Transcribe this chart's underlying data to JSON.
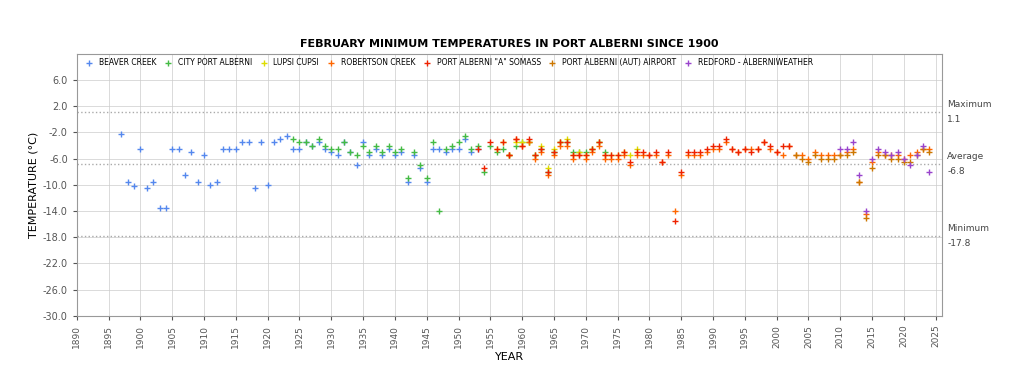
{
  "title": "FEBRUARY MINIMUM TEMPERATURES IN PORT ALBERNI SINCE 1900",
  "xlabel": "YEAR",
  "ylabel": "TEMPERATURE (°C)",
  "ylim": [
    -30.0,
    10.0
  ],
  "xlim": [
    1890,
    2026
  ],
  "yticks": [
    6.0,
    2.0,
    -2.0,
    -6.0,
    -10.0,
    -14.0,
    -18.0,
    -22.0,
    -26.0,
    -30.0
  ],
  "xticks": [
    1890,
    1895,
    1900,
    1905,
    1910,
    1915,
    1920,
    1925,
    1930,
    1935,
    1940,
    1945,
    1950,
    1955,
    1960,
    1965,
    1970,
    1975,
    1980,
    1985,
    1990,
    1995,
    2000,
    2005,
    2010,
    2015,
    2020,
    2025
  ],
  "max_line": 1.1,
  "avg_line": -6.8,
  "min_line": -17.8,
  "background_color": "#ffffff",
  "grid_color": "#cccccc",
  "ref_line_color": "#aaaaaa",
  "ref_label_color": "#444444",
  "series": [
    {
      "name": "BEAVER CREEK",
      "color": "#5588ee",
      "data": [
        [
          1897,
          -2.2
        ],
        [
          1898,
          -9.5
        ],
        [
          1899,
          -10.2
        ],
        [
          1900,
          -4.5
        ],
        [
          1901,
          -10.5
        ],
        [
          1902,
          -9.5
        ],
        [
          1903,
          -13.5
        ],
        [
          1904,
          -13.5
        ],
        [
          1905,
          -4.5
        ],
        [
          1906,
          -4.5
        ],
        [
          1907,
          -8.5
        ],
        [
          1908,
          -5.0
        ],
        [
          1909,
          -9.5
        ],
        [
          1910,
          -5.5
        ],
        [
          1911,
          -10.0
        ],
        [
          1912,
          -9.5
        ],
        [
          1913,
          -4.5
        ],
        [
          1914,
          -4.5
        ],
        [
          1915,
          -4.5
        ],
        [
          1916,
          -3.5
        ],
        [
          1917,
          -3.5
        ],
        [
          1918,
          -10.5
        ],
        [
          1919,
          -3.5
        ],
        [
          1920,
          -10.0
        ],
        [
          1921,
          -3.5
        ],
        [
          1922,
          -3.0
        ],
        [
          1923,
          -2.5
        ],
        [
          1924,
          -4.5
        ],
        [
          1925,
          -4.5
        ],
        [
          1926,
          -3.5
        ],
        [
          1927,
          -4.0
        ],
        [
          1928,
          -3.5
        ],
        [
          1929,
          -4.5
        ],
        [
          1930,
          -5.0
        ],
        [
          1931,
          -5.5
        ],
        [
          1932,
          -3.5
        ],
        [
          1933,
          -5.0
        ],
        [
          1934,
          -7.0
        ],
        [
          1935,
          -3.5
        ],
        [
          1936,
          -5.5
        ],
        [
          1937,
          -4.5
        ],
        [
          1938,
          -5.5
        ],
        [
          1939,
          -4.5
        ],
        [
          1940,
          -5.5
        ],
        [
          1941,
          -5.0
        ],
        [
          1942,
          -9.5
        ],
        [
          1943,
          -5.5
        ],
        [
          1944,
          -7.5
        ],
        [
          1945,
          -9.5
        ],
        [
          1946,
          -4.5
        ],
        [
          1947,
          -4.5
        ],
        [
          1948,
          -5.0
        ],
        [
          1949,
          -4.5
        ],
        [
          1950,
          -4.5
        ],
        [
          1951,
          -3.0
        ],
        [
          1952,
          -5.0
        ],
        [
          1953,
          -4.5
        ]
      ]
    },
    {
      "name": "CITY PORT ALBERNI",
      "color": "#44bb44",
      "data": [
        [
          1924,
          -3.0
        ],
        [
          1925,
          -3.5
        ],
        [
          1926,
          -3.5
        ],
        [
          1927,
          -4.0
        ],
        [
          1928,
          -3.0
        ],
        [
          1929,
          -4.0
        ],
        [
          1930,
          -4.5
        ],
        [
          1931,
          -4.5
        ],
        [
          1932,
          -3.5
        ],
        [
          1933,
          -5.0
        ],
        [
          1934,
          -5.5
        ],
        [
          1935,
          -4.0
        ],
        [
          1936,
          -5.0
        ],
        [
          1937,
          -4.0
        ],
        [
          1938,
          -5.0
        ],
        [
          1939,
          -4.0
        ],
        [
          1940,
          -5.0
        ],
        [
          1941,
          -4.5
        ],
        [
          1942,
          -9.0
        ],
        [
          1943,
          -5.0
        ],
        [
          1944,
          -7.0
        ],
        [
          1945,
          -9.0
        ],
        [
          1946,
          -3.5
        ],
        [
          1947,
          -14.0
        ],
        [
          1948,
          -4.5
        ],
        [
          1949,
          -4.0
        ],
        [
          1950,
          -3.5
        ],
        [
          1951,
          -2.5
        ],
        [
          1952,
          -4.5
        ],
        [
          1953,
          -4.0
        ],
        [
          1954,
          -8.0
        ],
        [
          1955,
          -4.0
        ],
        [
          1956,
          -5.0
        ],
        [
          1957,
          -4.5
        ],
        [
          1958,
          -5.5
        ],
        [
          1959,
          -4.0
        ],
        [
          1960,
          -3.5
        ],
        [
          1961,
          -3.5
        ],
        [
          1962,
          -5.5
        ],
        [
          1963,
          -4.5
        ],
        [
          1964,
          -8.0
        ],
        [
          1965,
          -5.0
        ],
        [
          1966,
          -3.5
        ],
        [
          1967,
          -3.5
        ],
        [
          1968,
          -5.0
        ],
        [
          1969,
          -5.0
        ],
        [
          1970,
          -5.0
        ],
        [
          1971,
          -4.5
        ],
        [
          1972,
          -3.5
        ],
        [
          1973,
          -5.0
        ]
      ]
    },
    {
      "name": "LUPSI CUPSI",
      "color": "#dddd00",
      "data": [
        [
          1956,
          -4.5
        ],
        [
          1957,
          -3.5
        ],
        [
          1958,
          -5.5
        ],
        [
          1959,
          -3.5
        ],
        [
          1960,
          -3.5
        ],
        [
          1961,
          -3.5
        ],
        [
          1962,
          -5.5
        ],
        [
          1963,
          -4.0
        ],
        [
          1964,
          -7.5
        ],
        [
          1965,
          -4.5
        ],
        [
          1966,
          -3.5
        ],
        [
          1967,
          -3.0
        ],
        [
          1968,
          -5.5
        ],
        [
          1969,
          -5.0
        ],
        [
          1970,
          -5.5
        ],
        [
          1971,
          -4.5
        ],
        [
          1972,
          -3.5
        ],
        [
          1973,
          -5.5
        ],
        [
          1974,
          -5.5
        ],
        [
          1975,
          -5.5
        ],
        [
          1976,
          -5.0
        ],
        [
          1977,
          -5.5
        ],
        [
          1978,
          -4.5
        ]
      ]
    },
    {
      "name": "ROBERTSON CREEK",
      "color": "#ff6600",
      "data": [
        [
          1958,
          -5.5
        ],
        [
          1959,
          -3.0
        ],
        [
          1960,
          -4.0
        ],
        [
          1961,
          -3.5
        ],
        [
          1962,
          -6.0
        ],
        [
          1963,
          -5.0
        ],
        [
          1964,
          -8.5
        ],
        [
          1965,
          -5.5
        ],
        [
          1966,
          -4.0
        ],
        [
          1967,
          -4.0
        ],
        [
          1968,
          -6.0
        ],
        [
          1969,
          -5.5
        ],
        [
          1970,
          -6.0
        ],
        [
          1971,
          -5.0
        ],
        [
          1972,
          -4.0
        ],
        [
          1973,
          -6.0
        ],
        [
          1974,
          -6.0
        ],
        [
          1975,
          -6.0
        ],
        [
          1976,
          -5.5
        ],
        [
          1977,
          -7.0
        ],
        [
          1978,
          -5.5
        ],
        [
          1979,
          -5.5
        ],
        [
          1980,
          -5.5
        ],
        [
          1981,
          -5.5
        ],
        [
          1982,
          -6.5
        ],
        [
          1983,
          -5.5
        ],
        [
          1984,
          -14.0
        ],
        [
          1985,
          -8.5
        ],
        [
          1986,
          -5.5
        ],
        [
          1987,
          -5.5
        ],
        [
          1988,
          -5.5
        ],
        [
          1989,
          -5.0
        ],
        [
          1990,
          -4.5
        ],
        [
          1991,
          -4.5
        ],
        [
          1992,
          -3.5
        ],
        [
          1993,
          -4.5
        ],
        [
          1994,
          -5.0
        ],
        [
          1995,
          -4.5
        ],
        [
          1996,
          -4.5
        ],
        [
          1997,
          -4.5
        ],
        [
          1998,
          -3.5
        ],
        [
          1999,
          -4.5
        ],
        [
          2000,
          -5.0
        ],
        [
          2001,
          -5.5
        ],
        [
          2002,
          -4.0
        ],
        [
          2003,
          -5.5
        ],
        [
          2004,
          -5.5
        ],
        [
          2005,
          -6.0
        ],
        [
          2006,
          -5.0
        ],
        [
          2007,
          -5.5
        ],
        [
          2008,
          -5.5
        ],
        [
          2009,
          -5.5
        ],
        [
          2010,
          -5.5
        ],
        [
          2011,
          -5.0
        ],
        [
          2012,
          -4.5
        ],
        [
          2013,
          -9.5
        ],
        [
          2014,
          -14.5
        ],
        [
          2015,
          -6.5
        ],
        [
          2016,
          -5.0
        ],
        [
          2017,
          -5.5
        ],
        [
          2018,
          -5.5
        ],
        [
          2019,
          -5.5
        ],
        [
          2020,
          -6.0
        ],
        [
          2021,
          -5.5
        ],
        [
          2022,
          -5.0
        ],
        [
          2023,
          -4.5
        ],
        [
          2024,
          -4.5
        ]
      ]
    },
    {
      "name": "PORT ALBERNI \"A\" SOMASS",
      "color": "#ee2200",
      "data": [
        [
          1953,
          -4.5
        ],
        [
          1954,
          -7.5
        ],
        [
          1955,
          -3.5
        ],
        [
          1956,
          -4.5
        ],
        [
          1957,
          -3.5
        ],
        [
          1958,
          -5.5
        ],
        [
          1959,
          -3.0
        ],
        [
          1960,
          -4.0
        ],
        [
          1961,
          -3.0
        ],
        [
          1962,
          -5.5
        ],
        [
          1963,
          -4.5
        ],
        [
          1964,
          -8.0
        ],
        [
          1965,
          -5.0
        ],
        [
          1966,
          -3.5
        ],
        [
          1967,
          -3.5
        ],
        [
          1968,
          -5.5
        ],
        [
          1969,
          -5.5
        ],
        [
          1970,
          -5.5
        ],
        [
          1971,
          -4.5
        ],
        [
          1972,
          -3.5
        ],
        [
          1973,
          -5.5
        ],
        [
          1974,
          -5.5
        ],
        [
          1975,
          -5.5
        ],
        [
          1976,
          -5.0
        ],
        [
          1977,
          -6.5
        ],
        [
          1978,
          -5.0
        ],
        [
          1979,
          -5.0
        ],
        [
          1980,
          -5.5
        ],
        [
          1981,
          -5.0
        ],
        [
          1982,
          -6.5
        ],
        [
          1983,
          -5.0
        ],
        [
          1984,
          -15.5
        ],
        [
          1985,
          -8.0
        ],
        [
          1986,
          -5.0
        ],
        [
          1987,
          -5.0
        ],
        [
          1988,
          -5.0
        ],
        [
          1989,
          -4.5
        ],
        [
          1990,
          -4.0
        ],
        [
          1991,
          -4.0
        ],
        [
          1992,
          -3.0
        ],
        [
          1993,
          -4.5
        ],
        [
          1994,
          -5.0
        ],
        [
          1995,
          -4.5
        ],
        [
          1996,
          -5.0
        ],
        [
          1997,
          -4.5
        ],
        [
          1998,
          -3.5
        ],
        [
          1999,
          -4.0
        ],
        [
          2000,
          -5.0
        ],
        [
          2001,
          -4.0
        ],
        [
          2002,
          -4.0
        ]
      ]
    },
    {
      "name": "PORT ALBERNI (AUT) AIRPORT",
      "color": "#cc7700",
      "data": [
        [
          2003,
          -5.5
        ],
        [
          2004,
          -6.0
        ],
        [
          2005,
          -6.5
        ],
        [
          2006,
          -5.5
        ],
        [
          2007,
          -6.0
        ],
        [
          2008,
          -6.0
        ],
        [
          2009,
          -6.0
        ],
        [
          2010,
          -5.5
        ],
        [
          2011,
          -5.5
        ],
        [
          2012,
          -5.0
        ],
        [
          2013,
          -9.5
        ],
        [
          2014,
          -15.0
        ],
        [
          2015,
          -7.5
        ],
        [
          2016,
          -5.5
        ],
        [
          2017,
          -5.5
        ],
        [
          2018,
          -6.0
        ],
        [
          2019,
          -6.0
        ],
        [
          2020,
          -6.5
        ],
        [
          2021,
          -6.5
        ],
        [
          2022,
          -5.5
        ],
        [
          2023,
          -4.5
        ],
        [
          2024,
          -5.0
        ]
      ]
    },
    {
      "name": "REDFORD - ALBERNIWEATHER",
      "color": "#9944cc",
      "data": [
        [
          2010,
          -4.5
        ],
        [
          2011,
          -4.5
        ],
        [
          2012,
          -3.5
        ],
        [
          2013,
          -8.5
        ],
        [
          2014,
          -14.0
        ],
        [
          2015,
          -6.0
        ],
        [
          2016,
          -4.5
        ],
        [
          2017,
          -5.0
        ],
        [
          2018,
          -5.5
        ],
        [
          2019,
          -5.0
        ],
        [
          2020,
          -6.0
        ],
        [
          2021,
          -7.0
        ],
        [
          2022,
          -5.5
        ],
        [
          2023,
          -4.0
        ],
        [
          2024,
          -8.0
        ]
      ]
    }
  ]
}
